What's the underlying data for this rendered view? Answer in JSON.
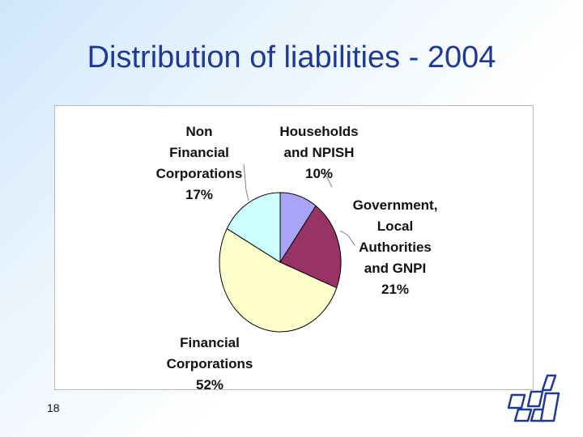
{
  "slide": {
    "title": "Distribution of liabilities - 2004",
    "page_number": "18"
  },
  "chart_data": {
    "type": "pie",
    "title": "",
    "slices": [
      {
        "lines": [
          "Households",
          "and NPISH",
          "10%"
        ],
        "value": 10,
        "color": "#a9a4f7"
      },
      {
        "lines": [
          "Government,",
          "Local",
          "Authorities",
          "and GNPI",
          "21%"
        ],
        "value": 21,
        "color": "#993366"
      },
      {
        "lines": [
          "Financial",
          "Corporations",
          "52%"
        ],
        "value": 52,
        "color": "#ffffcc"
      },
      {
        "lines": [
          "Non",
          "Financial",
          "Corporations",
          "17%"
        ],
        "value": 17,
        "color": "#ccffff"
      }
    ],
    "start": "12 o'clock",
    "direction": "clockwise",
    "legend": "none"
  },
  "logo": {
    "icon": "company-logo-icon",
    "color": "#1f3a96"
  }
}
